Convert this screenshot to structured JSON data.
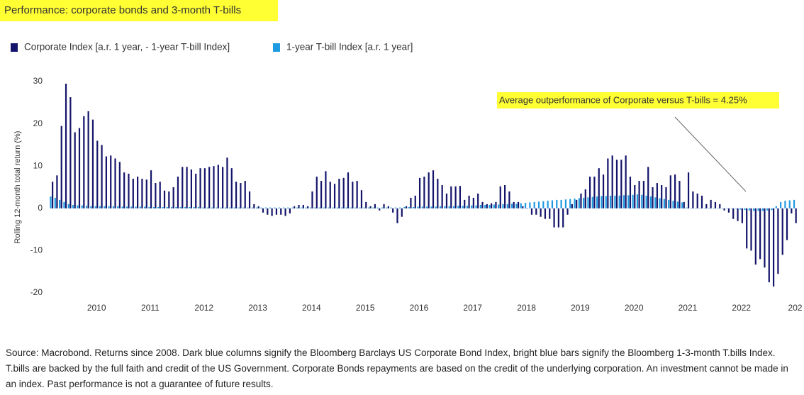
{
  "chart_data": {
    "type": "bar",
    "title": "Performance: corporate bonds and 3-month T-bills",
    "y_label": "Rolling 12-month total return (%)",
    "annotation": "Average outperformance of Corporate versus T-bills = 4.25%",
    "source": "Source: Macrobond. Returns since 2008. Dark blue columns signify the Bloomberg Barclays US Corporate Bond Index, bright blue bars signify the Bloomberg 1-3-month T.bills Index. T.bills are backed by the full faith and credit of the US Government. Corporate Bonds repayments are based on the credit of the underlying corporation. An investment cannot be made in an index. Past performance is not a guarantee of future results.",
    "categories": [
      null,
      null,
      null,
      null,
      null,
      null,
      null,
      null,
      null,
      null,
      "2010",
      null,
      null,
      null,
      null,
      null,
      null,
      null,
      null,
      null,
      null,
      null,
      "2011",
      null,
      null,
      null,
      null,
      null,
      null,
      null,
      null,
      null,
      null,
      null,
      "2012",
      null,
      null,
      null,
      null,
      null,
      null,
      null,
      null,
      null,
      null,
      null,
      "2013",
      null,
      null,
      null,
      null,
      null,
      null,
      null,
      null,
      null,
      null,
      null,
      "2014",
      null,
      null,
      null,
      null,
      null,
      null,
      null,
      null,
      null,
      null,
      null,
      "2015",
      null,
      null,
      null,
      null,
      null,
      null,
      null,
      null,
      null,
      null,
      null,
      "2016",
      null,
      null,
      null,
      null,
      null,
      null,
      null,
      null,
      null,
      null,
      null,
      "2017",
      null,
      null,
      null,
      null,
      null,
      null,
      null,
      null,
      null,
      null,
      null,
      "2018",
      null,
      null,
      null,
      null,
      null,
      null,
      null,
      null,
      null,
      null,
      null,
      "2019",
      null,
      null,
      null,
      null,
      null,
      null,
      null,
      null,
      null,
      null,
      null,
      "2020",
      null,
      null,
      null,
      null,
      null,
      null,
      null,
      null,
      null,
      null,
      null,
      "2021",
      null,
      null,
      null,
      null,
      null,
      null,
      null,
      null,
      null,
      null,
      null,
      "2022",
      null,
      null,
      null,
      null,
      null,
      null,
      null,
      null,
      null,
      null,
      null,
      "202"
    ],
    "series": [
      {
        "name": "Corporate Index [a.r. 1 year, - 1-year T-bill Index]",
        "color": "#14146b",
        "values": [
          6.3,
          7.8,
          19.5,
          29.5,
          26.3,
          18,
          19,
          21.8,
          23,
          21,
          16,
          15,
          12.3,
          12.5,
          11.8,
          11,
          8.5,
          8.2,
          7,
          7.5,
          7,
          6.8,
          9,
          6,
          6.3,
          4.2,
          4,
          5,
          7.5,
          9.8,
          9.8,
          9.2,
          8.2,
          9.5,
          9.5,
          9.8,
          10,
          10.3,
          9.8,
          12,
          9.5,
          6.3,
          6,
          6.5,
          4,
          1,
          0.5,
          -1,
          -1.5,
          -1.8,
          -1.5,
          -1.5,
          -1.8,
          -1.2,
          0.5,
          0.8,
          0.8,
          0.5,
          4,
          7.5,
          6.5,
          8.8,
          6.3,
          5.8,
          7,
          7.2,
          8.5,
          6.3,
          6.5,
          4.3,
          1.5,
          0.5,
          1,
          -0.5,
          1,
          0.5,
          -1,
          -3.5,
          -2,
          0.5,
          2.5,
          3,
          7.2,
          7.5,
          8.5,
          9,
          7,
          5.5,
          3.5,
          5.2,
          5.2,
          5.3,
          2,
          3,
          2.5,
          3.5,
          1.5,
          1,
          1.2,
          1.5,
          5.2,
          5.5,
          4,
          1.5,
          1.5,
          0.5,
          0,
          -1.5,
          -1.5,
          -2,
          -2.5,
          -2.5,
          -4.5,
          -4.5,
          -4.5,
          -1.5,
          1,
          2,
          3.5,
          4.5,
          7.5,
          7.5,
          9.5,
          8,
          11.8,
          12.5,
          11.5,
          11.5,
          12.5,
          7.5,
          5.5,
          6.5,
          6.5,
          9.8,
          5,
          6,
          5.5,
          5,
          7.8,
          8,
          6.5,
          1.5,
          8.5,
          4,
          3.5,
          3,
          1,
          2,
          1.5,
          1,
          -0.5,
          -1,
          -2.5,
          -3,
          -3.5,
          -9.5,
          -10,
          -13.3,
          -12,
          -14,
          -17.5,
          -18.5,
          -15.5,
          -11,
          -7.5,
          -1.2,
          -3.5
        ]
      },
      {
        "name": "1-year T-bill Index [a.r. 1 year]",
        "color": "#1e9be0",
        "values": [
          2.8,
          2.5,
          2,
          1.5,
          1,
          0.8,
          0.7,
          0.7,
          0.6,
          0.5,
          0.5,
          0.5,
          0.5,
          0.5,
          0.5,
          0.5,
          0.4,
          0.4,
          0.4,
          0.4,
          0.4,
          0.4,
          0.3,
          0.3,
          0.3,
          0.3,
          0.3,
          0.3,
          0.3,
          0.3,
          0.3,
          0.3,
          0.3,
          0.3,
          0.2,
          0.2,
          0.2,
          0.2,
          0.2,
          0.2,
          0.2,
          0.2,
          0.2,
          0.2,
          0.2,
          0.2,
          0.2,
          0.2,
          0.2,
          0.2,
          0.2,
          0.2,
          0.2,
          0.2,
          0.2,
          0.2,
          0.2,
          0.2,
          0.2,
          0.2,
          0.2,
          0.2,
          0.2,
          0.2,
          0.2,
          0.2,
          0.2,
          0.2,
          0.2,
          0.2,
          0.2,
          0.2,
          0.2,
          0.2,
          0.2,
          0.2,
          0.2,
          0.2,
          0.2,
          0.3,
          0.3,
          0.3,
          0.4,
          0.4,
          0.4,
          0.4,
          0.4,
          0.5,
          0.5,
          0.5,
          0.5,
          0.6,
          0.6,
          0.6,
          0.7,
          0.7,
          0.8,
          0.8,
          0.8,
          0.9,
          0.9,
          1,
          1,
          1.1,
          1.1,
          1.2,
          1.3,
          1.4,
          1.5,
          1.6,
          1.7,
          1.8,
          1.9,
          2,
          2,
          2.1,
          2.2,
          2.3,
          2.4,
          2.5,
          2.6,
          2.7,
          2.8,
          2.9,
          2.9,
          3,
          3,
          3,
          3.1,
          3.1,
          3.2,
          3.3,
          3.2,
          3,
          2.8,
          2.6,
          2.4,
          2.2,
          2,
          1.8,
          1.6,
          1.4,
          0.2,
          0.1,
          0.1,
          0.1,
          0.1,
          0.1,
          0.1,
          0.1,
          0.1,
          0.1,
          0,
          -0.1,
          -0.3,
          -0.4,
          -0.5,
          -0.6,
          -0.6,
          -0.6,
          -0.5,
          -0.4,
          0.5,
          1.5,
          1.8,
          1.9,
          2
        ]
      }
    ],
    "ylim": [
      -20,
      30
    ],
    "yticks": [
      -20,
      -10,
      0,
      10,
      20,
      30
    ],
    "grid": false
  }
}
